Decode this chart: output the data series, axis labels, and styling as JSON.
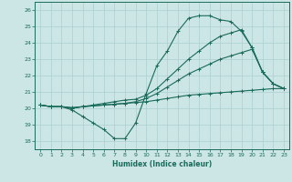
{
  "xlabel": "Humidex (Indice chaleur)",
  "xlim": [
    -0.5,
    23.5
  ],
  "ylim": [
    17.5,
    26.5
  ],
  "yticks": [
    18,
    19,
    20,
    21,
    22,
    23,
    24,
    25,
    26
  ],
  "xticks": [
    0,
    1,
    2,
    3,
    4,
    5,
    6,
    7,
    8,
    9,
    10,
    11,
    12,
    13,
    14,
    15,
    16,
    17,
    18,
    19,
    20,
    21,
    22,
    23
  ],
  "bg_color": "#cce5e5",
  "grid_color": "#aad0d0",
  "line_color": "#1a6b5a",
  "lines": [
    {
      "x": [
        0,
        1,
        2,
        3,
        4,
        5,
        6,
        7,
        8,
        9,
        10,
        11,
        12,
        13,
        14,
        15,
        16,
        17,
        18,
        19,
        20,
        21,
        22,
        23
      ],
      "y": [
        20.2,
        20.1,
        20.1,
        19.9,
        19.5,
        19.1,
        18.7,
        18.15,
        18.15,
        19.1,
        20.9,
        22.6,
        23.5,
        24.7,
        25.5,
        25.65,
        25.65,
        25.4,
        25.3,
        24.7,
        23.7,
        22.2,
        21.5,
        21.2
      ]
    },
    {
      "x": [
        0,
        1,
        2,
        3,
        4,
        5,
        6,
        7,
        8,
        9,
        10,
        11,
        12,
        13,
        14,
        15,
        16,
        17,
        18,
        19,
        20,
        21,
        22,
        23
      ],
      "y": [
        20.2,
        20.1,
        20.1,
        20.05,
        20.1,
        20.15,
        20.2,
        20.25,
        20.3,
        20.35,
        20.4,
        20.5,
        20.6,
        20.7,
        20.8,
        20.85,
        20.9,
        20.95,
        21.0,
        21.05,
        21.1,
        21.15,
        21.2,
        21.2
      ]
    },
    {
      "x": [
        0,
        1,
        2,
        3,
        4,
        5,
        6,
        7,
        8,
        9,
        10,
        11,
        12,
        13,
        14,
        15,
        16,
        17,
        18,
        19,
        20,
        21,
        22,
        23
      ],
      "y": [
        20.2,
        20.1,
        20.1,
        20.0,
        20.1,
        20.2,
        20.3,
        20.4,
        20.5,
        20.55,
        20.8,
        21.2,
        21.8,
        22.4,
        23.0,
        23.5,
        24.0,
        24.4,
        24.6,
        24.8,
        23.7,
        22.2,
        21.5,
        21.2
      ]
    },
    {
      "x": [
        0,
        1,
        2,
        3,
        4,
        5,
        6,
        7,
        8,
        9,
        10,
        11,
        12,
        13,
        14,
        15,
        16,
        17,
        18,
        19,
        20,
        21,
        22,
        23
      ],
      "y": [
        20.2,
        20.1,
        20.1,
        20.0,
        20.1,
        20.15,
        20.2,
        20.25,
        20.3,
        20.4,
        20.6,
        20.9,
        21.3,
        21.7,
        22.1,
        22.4,
        22.7,
        23.0,
        23.2,
        23.4,
        23.6,
        22.2,
        21.5,
        21.2
      ]
    }
  ]
}
